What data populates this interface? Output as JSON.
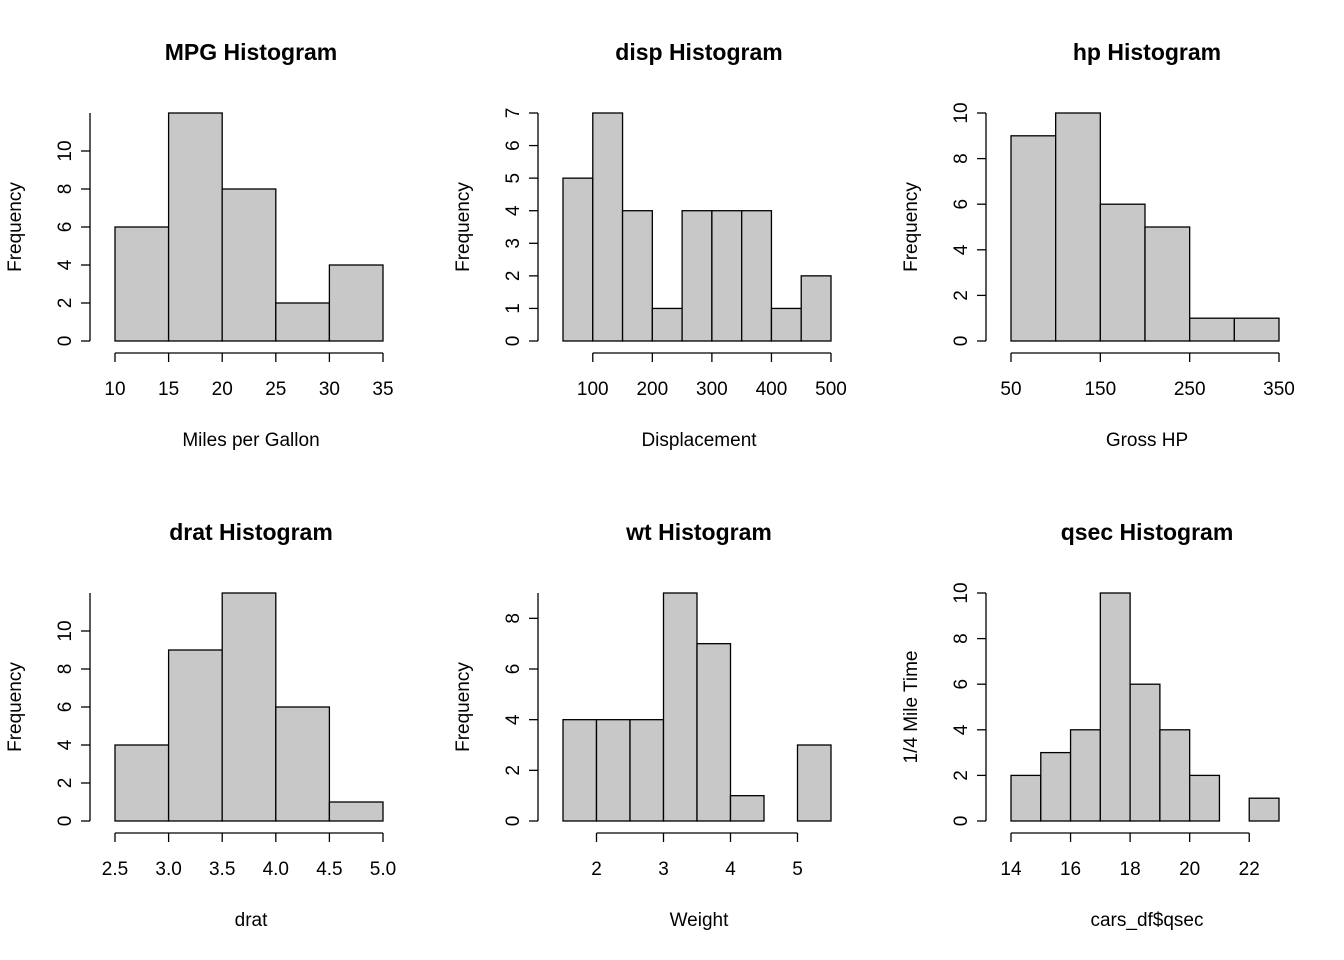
{
  "chart_data": [
    {
      "type": "histogram",
      "title": "MPG Histogram",
      "x_label": "Miles per Gallon",
      "y_label": "Frequency",
      "bins": [
        10,
        15,
        20,
        25,
        30,
        35
      ],
      "values": [
        6,
        12,
        8,
        2,
        4
      ],
      "color": "#c8c8c8",
      "xlim": [
        10,
        35
      ],
      "xticks": [
        10,
        15,
        20,
        25,
        30,
        35
      ],
      "ylim": [
        0,
        12
      ],
      "yticks": [
        0,
        2,
        4,
        6,
        8,
        10
      ]
    },
    {
      "type": "histogram",
      "title": "disp Histogram",
      "x_label": "Displacement",
      "y_label": "Frequency",
      "bins": [
        50,
        100,
        150,
        200,
        250,
        300,
        350,
        400,
        450,
        500
      ],
      "values": [
        5,
        7,
        4,
        1,
        4,
        4,
        4,
        1,
        2
      ],
      "color": "#c8c8c8",
      "xlim": [
        50,
        500
      ],
      "xticks": [
        100,
        200,
        300,
        400,
        500
      ],
      "ylim": [
        0,
        7
      ],
      "yticks": [
        0,
        1,
        2,
        3,
        4,
        5,
        6,
        7
      ]
    },
    {
      "type": "histogram",
      "title": "hp Histogram",
      "x_label": "Gross HP",
      "y_label": "Frequency",
      "bins": [
        50,
        100,
        150,
        200,
        250,
        300,
        350
      ],
      "values": [
        9,
        10,
        6,
        5,
        1,
        1
      ],
      "color": "#c8c8c8",
      "xlim": [
        50,
        350
      ],
      "xticks": [
        50,
        150,
        250,
        350
      ],
      "ylim": [
        0,
        10
      ],
      "yticks": [
        0,
        2,
        4,
        6,
        8,
        10
      ]
    },
    {
      "type": "histogram",
      "title": "drat Histogram",
      "x_label": "drat",
      "y_label": "Frequency",
      "bins": [
        2.5,
        3,
        3.5,
        4,
        4.5,
        5
      ],
      "values": [
        4,
        9,
        12,
        6,
        1
      ],
      "color": "#c8c8c8",
      "xlim": [
        2.5,
        5
      ],
      "xticks": [
        2.5,
        {
          "value": 3,
          "label": "3.0"
        },
        3.5,
        {
          "value": 4,
          "label": "4.0"
        },
        4.5,
        {
          "value": 5,
          "label": "5.0"
        }
      ],
      "ylim": [
        0,
        12
      ],
      "yticks": [
        0,
        2,
        4,
        6,
        8,
        10
      ]
    },
    {
      "type": "histogram",
      "title": "wt Histogram",
      "x_label": "Weight",
      "y_label": "Frequency",
      "bins": [
        1.5,
        2,
        2.5,
        3,
        3.5,
        4,
        4.5,
        5,
        5.5
      ],
      "values": [
        4,
        4,
        4,
        9,
        7,
        1,
        0,
        3
      ],
      "color": "#c8c8c8",
      "xlim": [
        1.5,
        5.5
      ],
      "xticks": [
        2,
        3,
        4,
        5
      ],
      "ylim": [
        0,
        9
      ],
      "yticks": [
        0,
        2,
        4,
        6,
        8
      ]
    },
    {
      "type": "histogram",
      "title": "qsec Histogram",
      "x_label": "cars_df$qsec",
      "y_label": "1/4 Mile Time",
      "bins": [
        14,
        15,
        16,
        17,
        18,
        19,
        20,
        21,
        22,
        23
      ],
      "values": [
        2,
        3,
        4,
        10,
        6,
        4,
        2,
        0,
        1
      ],
      "color": "#c8c8c8",
      "xlim": [
        14,
        23
      ],
      "xticks": [
        14,
        16,
        18,
        20,
        22
      ],
      "ylim": [
        0,
        10
      ],
      "yticks": [
        0,
        2,
        4,
        6,
        8,
        10
      ]
    }
  ]
}
